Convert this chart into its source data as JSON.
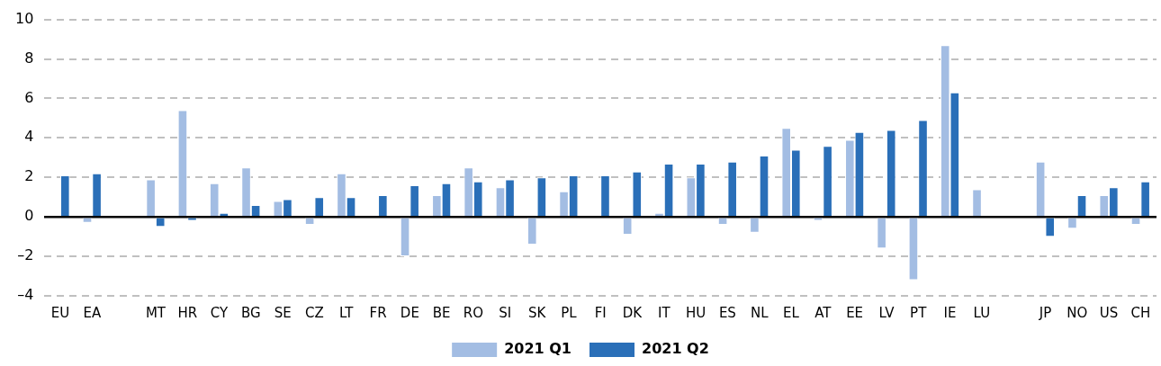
{
  "chart_data": {
    "type": "bar",
    "categories": [
      "EU",
      "EA",
      null,
      "MT",
      "HR",
      "CY",
      "BG",
      "SE",
      "CZ",
      "LT",
      "FR",
      "DE",
      "BE",
      "RO",
      "SI",
      "SK",
      "PL",
      "FI",
      "DK",
      "IT",
      "HU",
      "ES",
      "NL",
      "EL",
      "AT",
      "EE",
      "LV",
      "PT",
      "IE",
      "LU",
      null,
      "JP",
      "NO",
      "US",
      "CH"
    ],
    "series": [
      {
        "name": "2021 Q1",
        "color": "#a3bde3",
        "values": [
          null,
          -0.3,
          null,
          1.9,
          5.4,
          1.7,
          2.5,
          0.8,
          -0.4,
          2.2,
          0,
          -2.0,
          1.1,
          2.5,
          1.5,
          -1.4,
          1.3,
          null,
          -0.9,
          0.2,
          2.0,
          -0.4,
          -0.8,
          4.5,
          -0.2,
          3.9,
          -1.6,
          -3.2,
          8.7,
          1.4,
          null,
          2.8,
          -0.6,
          1.1,
          -0.4
        ]
      },
      {
        "name": "2021 Q2",
        "color": "#2a6fb8",
        "values": [
          2.1,
          2.2,
          null,
          -0.5,
          -0.2,
          0.2,
          0.6,
          0.9,
          1.0,
          1.0,
          1.1,
          1.6,
          1.7,
          1.8,
          1.9,
          2.0,
          2.1,
          2.1,
          2.3,
          2.7,
          2.7,
          2.8,
          3.1,
          3.4,
          3.6,
          4.3,
          4.4,
          4.9,
          6.3,
          null,
          null,
          -1.0,
          1.1,
          1.5,
          1.8
        ]
      }
    ],
    "ylim": [
      -4,
      10
    ],
    "yticks": [
      {
        "value": -4,
        "label": "–4"
      },
      {
        "value": -2,
        "label": "–2"
      },
      0,
      2,
      4,
      6,
      8,
      10
    ],
    "grid": "y",
    "legend": "bottom"
  }
}
